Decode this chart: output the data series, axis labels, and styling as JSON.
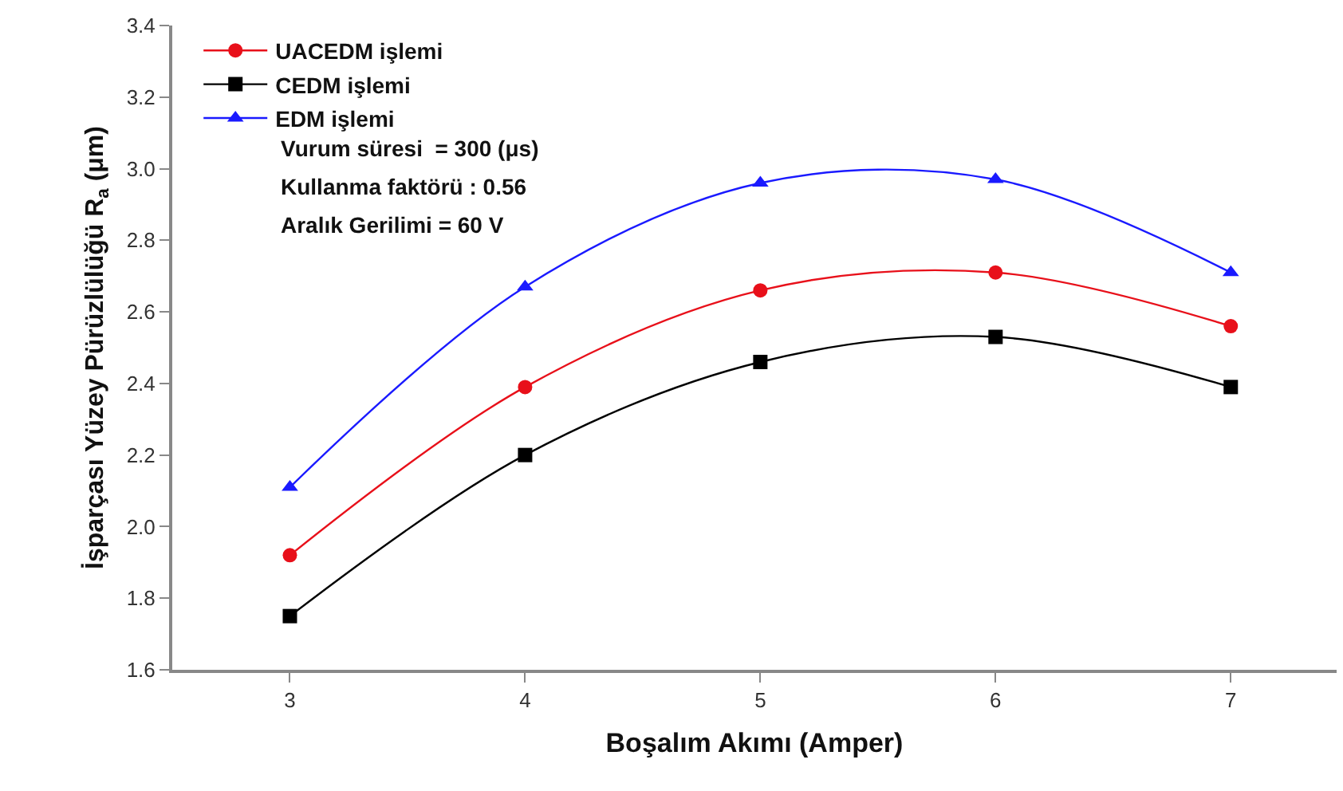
{
  "chart_data": {
    "type": "line",
    "xlabel": "Boşalım Akımı (Amper)",
    "ylabel": "İşparçası Yüzey Pürüzlülüğü R$_{a}$ (μm)",
    "x": [
      3,
      4,
      5,
      6,
      7
    ],
    "series": [
      {
        "name": "UACEDM işlemi",
        "color": "#e8101a",
        "marker": "circle",
        "values": [
          1.92,
          2.39,
          2.66,
          2.71,
          2.56
        ]
      },
      {
        "name": "CEDM işlemi",
        "color": "#000000",
        "marker": "square",
        "values": [
          1.75,
          2.2,
          2.46,
          2.53,
          2.39
        ]
      },
      {
        "name": "EDM işlemi",
        "color": "#1a1aff",
        "marker": "triangle",
        "values": [
          2.11,
          2.67,
          2.96,
          2.97,
          2.71
        ]
      }
    ],
    "annotations": [
      "Vurum süresi  = 300 (μs)",
      "Kullanma faktörü : 0.56",
      "Aralık Gerilimi = 60 V"
    ],
    "xlim": [
      2.5,
      7.45
    ],
    "xticks": [
      3,
      4,
      5,
      6,
      7
    ],
    "ylim": [
      1.6,
      3.4
    ],
    "yticks": [
      1.6,
      1.8,
      {
        "value": 2,
        "label": "2.0"
      },
      2.2,
      2.4,
      2.6,
      2.8,
      {
        "value": 3,
        "label": "3.0"
      },
      3.2,
      3.4
    ],
    "grid": false,
    "legend": "top left",
    "line_style": "solid"
  }
}
